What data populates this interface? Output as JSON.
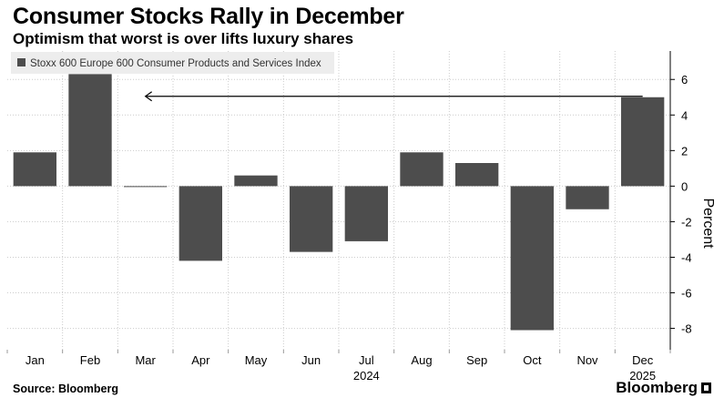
{
  "header": {
    "title": "Consumer Stocks Rally in December",
    "subtitle": "Optimism that worst is over lifts luxury shares"
  },
  "footer": {
    "source": "Source: Bloomberg",
    "brand": "Bloomberg"
  },
  "colors": {
    "bar": "#4d4d4d",
    "grid": "#cccccc",
    "text": "#000000",
    "legend_bg": "#ededed"
  },
  "chart_data": {
    "type": "bar",
    "title": "Consumer Stocks Rally in December",
    "series": [
      {
        "name": "Stoxx 600 Europe 600 Consumer Products and Services Index",
        "values": [
          1.9,
          6.3,
          0.0,
          -4.2,
          0.6,
          -3.7,
          -3.1,
          1.9,
          1.3,
          -8.1,
          -1.3,
          5.0
        ]
      }
    ],
    "categories": [
      "Jan",
      "Feb",
      "Mar",
      "Apr",
      "May",
      "Jun",
      "Jul",
      "Aug",
      "Sep",
      "Oct",
      "Nov",
      "Dec"
    ],
    "year_labels": [
      {
        "label": "2024",
        "category": "Jul"
      },
      {
        "label": "2025",
        "category": "Dec"
      }
    ],
    "ylabel": "Percent",
    "xlabel": "",
    "ylim": [
      -9.2,
      7.6
    ],
    "yticks": [
      -8,
      -6,
      -4,
      -2,
      0,
      2,
      4,
      6
    ],
    "grid": true,
    "legend": "top-left",
    "annotation": {
      "type": "arrow",
      "from_category": "Dec",
      "to_category": "Mar",
      "at_value": 5.0
    }
  }
}
